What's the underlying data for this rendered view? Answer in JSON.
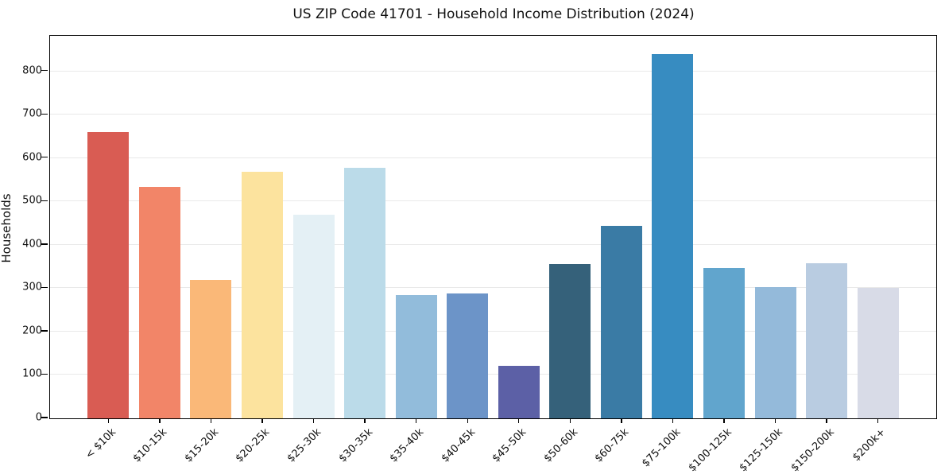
{
  "chart_data": {
    "type": "bar",
    "title": "US ZIP Code 41701 - Household Income Distribution (2024)",
    "xlabel": "",
    "ylabel": "Households",
    "categories": [
      "< $10k",
      "$10-15k",
      "$15-20k",
      "$20-25k",
      "$25-30k",
      "$30-35k",
      "$35-40k",
      "$40-45k",
      "$45-50k",
      "$50-60k",
      "$60-75k",
      "$75-100k",
      "$100-125k",
      "$125-150k",
      "$150-200k",
      "$200k+"
    ],
    "values": [
      660,
      533,
      320,
      569,
      470,
      577,
      285,
      287,
      121,
      355,
      443,
      840,
      347,
      303,
      358,
      301
    ],
    "bar_colors": [
      "#d95c53",
      "#f28568",
      "#fab878",
      "#fce39e",
      "#e4f0f5",
      "#bbdbe9",
      "#92bcdb",
      "#6c94c8",
      "#5c60a6",
      "#35617a",
      "#3a7ba5",
      "#378cc1",
      "#61a5cd",
      "#94bada",
      "#b9cce1",
      "#d8dbe7"
    ],
    "ylim": [
      0,
      882
    ],
    "yticks": [
      0,
      100,
      200,
      300,
      400,
      500,
      600,
      700,
      800
    ],
    "grid": "horizontal",
    "gridline_color": "#e9e9e9",
    "background_color": "#ffffff",
    "legend": null
  }
}
